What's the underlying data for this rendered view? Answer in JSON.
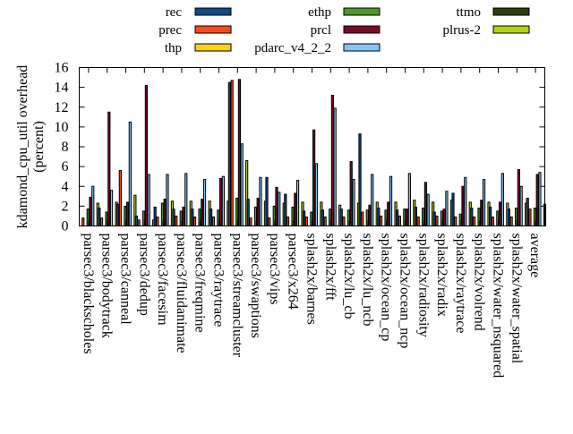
{
  "chart_data": {
    "type": "bar",
    "title": "",
    "xlabel": "",
    "ylabel": "kdamond_cpu_util overhead\n(percent)",
    "ylabel_lines": [
      "kdamond_cpu_util overhead",
      "(percent)"
    ],
    "ylim": [
      0,
      16
    ],
    "yticks": [
      0,
      2,
      4,
      6,
      8,
      10,
      12,
      14,
      16
    ],
    "grid": false,
    "legend_position": "top",
    "categories": [
      "parsec3/blackscholes",
      "parsec3/bodytrack",
      "parsec3/canneal",
      "parsec3/dedup",
      "parsec3/facesim",
      "parsec3/fluidanimate",
      "parsec3/freqmine",
      "parsec3/raytrace",
      "parsec3/streamcluster",
      "parsec3/swaptions",
      "parsec3/vips",
      "parsec3/x264",
      "splash2x/barnes",
      "splash2x/fft",
      "splash2x/lu_cb",
      "splash2x/lu_ncb",
      "splash2x/ocean_cp",
      "splash2x/ocean_ncp",
      "splash2x/radiosity",
      "splash2x/radix",
      "splash2x/raytrace",
      "splash2x/volrend",
      "splash2x/water_nsquared",
      "splash2x/water_spatial",
      "average"
    ],
    "series": [
      {
        "name": "rec",
        "color": "#0b4a8a",
        "values": [
          0.0,
          1.8,
          2.2,
          1.0,
          1.9,
          1.7,
          1.7,
          1.7,
          14.5,
          2.7,
          4.9,
          3.2,
          1.5,
          1.6,
          1.7,
          9.3,
          1.8,
          1.6,
          1.9,
          1.4,
          3.3,
          1.8,
          1.9,
          1.7,
          2.8
        ]
      },
      {
        "name": "prec",
        "color": "#fb4a1a",
        "values": [
          0.8,
          0.8,
          5.6,
          0.6,
          0.9,
          1.0,
          0.9,
          0.9,
          14.7,
          0.8,
          0.8,
          0.9,
          0.9,
          0.9,
          0.9,
          1.4,
          1.0,
          1.0,
          0.9,
          1.0,
          0.9,
          0.9,
          0.9,
          0.9,
          1.7
        ]
      },
      {
        "name": "thp",
        "color": "#fcd21a",
        "values": [
          0,
          0,
          0,
          0,
          0,
          0,
          0,
          0,
          0,
          0,
          0,
          0,
          0,
          0,
          0,
          0,
          0,
          0,
          0,
          0,
          0,
          0,
          0,
          0,
          0
        ]
      },
      {
        "name": "ethp",
        "color": "#4c9a23",
        "values": [
          1.7,
          1.4,
          2.0,
          1.5,
          2.3,
          1.5,
          1.7,
          1.6,
          2.8,
          1.9,
          2.0,
          1.9,
          1.4,
          1.7,
          1.6,
          1.6,
          1.6,
          1.7,
          1.8,
          1.5,
          1.2,
          1.8,
          1.5,
          1.8,
          1.8
        ]
      },
      {
        "name": "prcl",
        "color": "#7a0a28",
        "values": [
          2.9,
          11.5,
          2.4,
          14.2,
          2.7,
          1.9,
          2.7,
          4.8,
          14.8,
          2.8,
          3.9,
          3.3,
          9.7,
          13.2,
          6.5,
          2.1,
          2.4,
          1.7,
          4.4,
          1.7,
          4.0,
          2.6,
          2.4,
          5.7,
          5.2
        ]
      },
      {
        "name": "pdarc_v4_2_2",
        "color": "#86c5f8",
        "values": [
          4.0,
          3.6,
          10.5,
          5.2,
          5.2,
          5.3,
          4.7,
          5.0,
          8.3,
          4.9,
          3.4,
          4.6,
          6.3,
          11.9,
          4.7,
          5.2,
          5.0,
          5.3,
          3.2,
          3.5,
          4.9,
          4.7,
          5.3,
          4.0,
          5.4
        ]
      },
      {
        "name": "ttmo",
        "color": "#2f3d0c",
        "values": [
          0,
          0,
          0,
          0,
          0,
          0,
          0,
          0,
          0,
          0,
          0,
          0,
          0,
          0,
          0,
          0,
          0,
          0,
          0,
          0,
          0,
          0,
          0,
          0,
          0
        ]
      },
      {
        "name": "plrus-2",
        "color": "#b5d210",
        "values": [
          2.3,
          2.4,
          3.1,
          0.6,
          2.5,
          2.5,
          2.5,
          2.5,
          6.6,
          2.5,
          2.3,
          2.4,
          2.4,
          2.1,
          2.3,
          2.4,
          2.4,
          2.6,
          2.4,
          2.6,
          2.4,
          2.4,
          2.3,
          2.3,
          2.2
        ]
      }
    ]
  }
}
